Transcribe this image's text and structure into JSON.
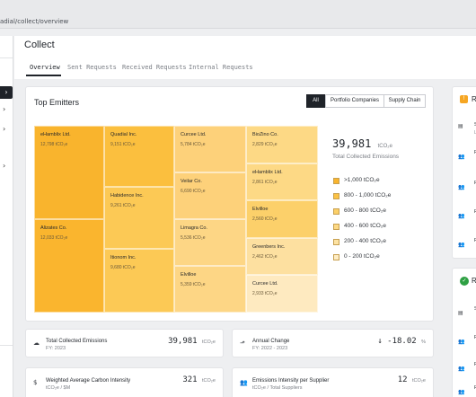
{
  "browser": {
    "url": "adial/collect/overview"
  },
  "page": {
    "title": "Collect"
  },
  "tabs": [
    "Overview",
    "Sent Requests",
    "Received Requests",
    "Internal Requests"
  ],
  "emitters": {
    "title": "Top Emitters",
    "filters": [
      "All",
      "Portfolio Companies",
      "Supply Chain"
    ],
    "total": {
      "value": "39,981",
      "unit": "tCO₂e",
      "label": "Total Collected Emissions"
    },
    "legend": [
      ">1,000 tCO₂e",
      "800 - 1,000 tCO₂e",
      "600 - 800 tCO₂e",
      "400 - 600 tCO₂e",
      "200 - 400 tCO₂e",
      "0 - 200 tCO₂e"
    ],
    "legend_colors": [
      "#f9b42d",
      "#fbc245",
      "#fcd068",
      "#fdd985",
      "#fde3a3",
      "#feedc5"
    ],
    "tiles": [
      {
        "name": "eHamblix Ltd.",
        "value": "12,798 tCO₂e",
        "color": "#f9b42d"
      },
      {
        "name": "Alizates Co.",
        "value": "12,033 tCO₂e",
        "color": "#fab52e"
      },
      {
        "name": "Quadial Inc.",
        "value": "9,151 tCO₂e",
        "color": "#fbbf3e"
      },
      {
        "name": "Habidence Inc.",
        "value": "9,261 tCO₂e",
        "color": "#fcc955"
      },
      {
        "name": "Itionom Inc.",
        "value": "9,680 tCO₂e",
        "color": "#fcc955"
      },
      {
        "name": "Curcee Ltd.",
        "value": "5,784 tCO₂e",
        "color": "#fdd17a"
      },
      {
        "name": "Veilar Co.",
        "value": "6,690 tCO₂e",
        "color": "#fdd17a"
      },
      {
        "name": "Limagra Co.",
        "value": "5,536 tCO₂e",
        "color": "#fdd685"
      },
      {
        "name": "Elvilloe",
        "value": "5,359 tCO₂e",
        "color": "#fdd685"
      },
      {
        "name": "BioZino Co.",
        "value": "2,829 tCO₂e",
        "color": "#fdd985"
      },
      {
        "name": "eHamblix Ltd.",
        "value": "2,861 tCO₂e",
        "color": "#fdd985"
      },
      {
        "name": "Elvilloe",
        "value": "2,560 tCO₂e",
        "color": "#fcd06a"
      },
      {
        "name": "Greenbers  Inc.",
        "value": "2,462 tCO₂e",
        "color": "#fde0a0"
      },
      {
        "name": "Curcee Ltd.",
        "value": "2,933 tCO₂e",
        "color": "#feeac0"
      }
    ]
  },
  "stats": [
    {
      "label": "Total Collected Emissions",
      "sub": "FY: 2023",
      "value": "39,981",
      "unit": "tCO₂e",
      "icon": "cloud-icon"
    },
    {
      "label": "Annual Change",
      "sub": "FY: 2022 - 2023",
      "value": "↓ -18.02",
      "unit": "%",
      "icon": "trend-icon"
    },
    {
      "label": "Weighted Average Carbon Intensity",
      "sub": "tCO₂e / $M",
      "value": "321",
      "unit": "tCO₂e",
      "icon": "dollar-icon"
    },
    {
      "label": "Emissions Intensity per Supplier",
      "sub": "tCO₂e / Total Suppliers",
      "value": "12",
      "unit": "tCO₂e",
      "icon": "users-icon"
    }
  ],
  "right_panel": {
    "headers": [
      "R",
      "R"
    ],
    "items": [
      "S",
      "L",
      "F",
      "F",
      "F",
      "F",
      "S",
      "F",
      "F",
      "F"
    ]
  }
}
